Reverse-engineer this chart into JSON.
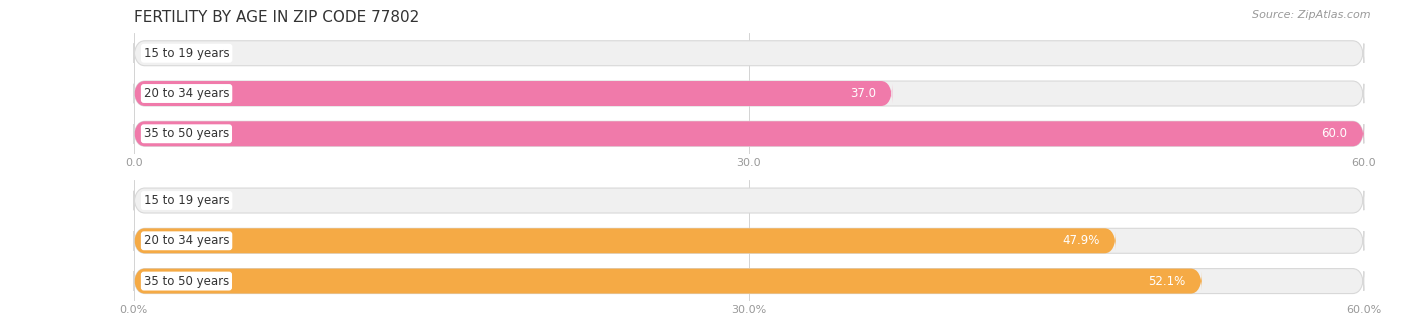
{
  "title": "FERTILITY BY AGE IN ZIP CODE 77802",
  "source": "Source: ZipAtlas.com",
  "top_chart": {
    "categories": [
      "15 to 19 years",
      "20 to 34 years",
      "35 to 50 years"
    ],
    "values": [
      0.0,
      37.0,
      60.0
    ],
    "xlim": [
      0,
      60
    ],
    "xticks": [
      0.0,
      30.0,
      60.0
    ],
    "bar_color": "#f07aaa",
    "bar_color_light": "#f5c0d0",
    "bg_color": "#f0f0f0",
    "label_color": "#ffffff",
    "label_outside_color": "#999999",
    "bar_height": 0.62
  },
  "bottom_chart": {
    "categories": [
      "15 to 19 years",
      "20 to 34 years",
      "35 to 50 years"
    ],
    "values": [
      0.0,
      47.9,
      52.1
    ],
    "xlim": [
      0,
      60
    ],
    "xticks": [
      0.0,
      30.0,
      60.0
    ],
    "bar_color": "#f5aa45",
    "bar_color_light": "#f5d5a0",
    "bg_color": "#f0f0f0",
    "label_color": "#ffffff",
    "label_outside_color": "#999999",
    "bar_height": 0.62
  },
  "fig_width": 14.06,
  "fig_height": 3.31,
  "background_color": "#ffffff",
  "title_fontsize": 11,
  "cat_fontsize": 8.5,
  "val_fontsize": 8.5,
  "tick_fontsize": 8,
  "source_fontsize": 8
}
